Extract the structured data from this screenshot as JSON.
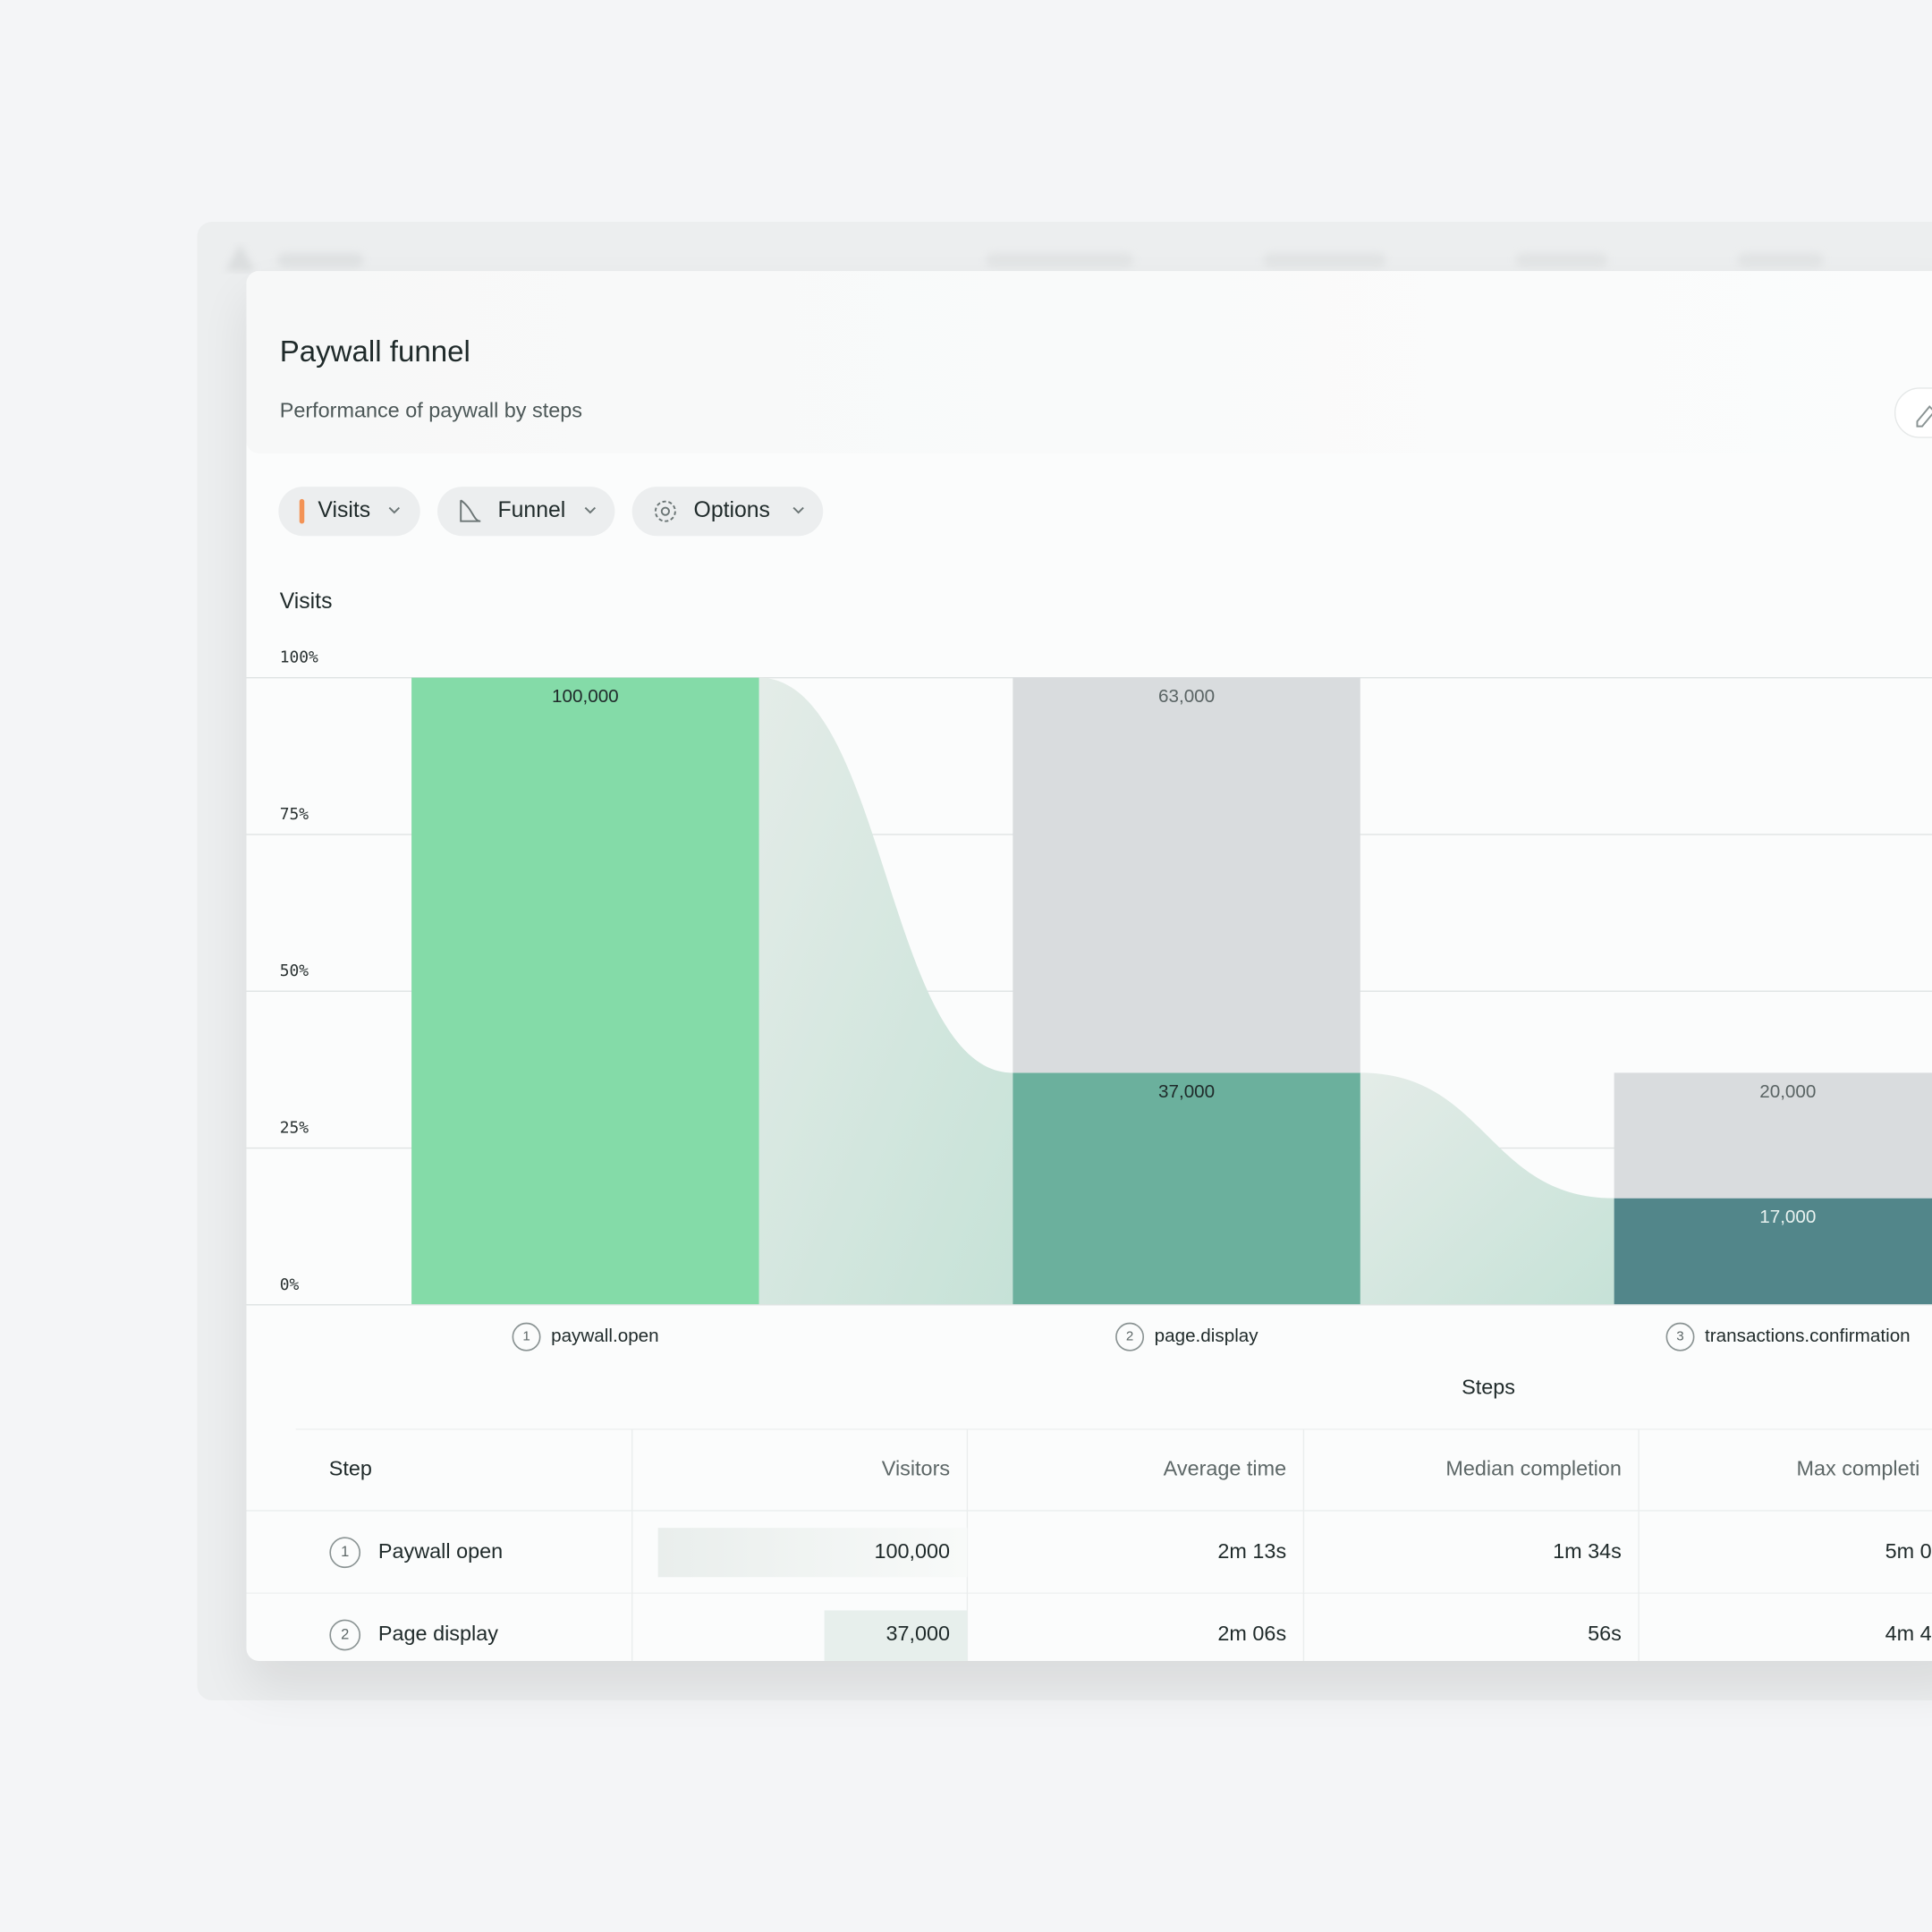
{
  "header": {
    "title": "Paywall funnel",
    "subtitle": "Performance of paywall by steps"
  },
  "toolbar": [
    "Visits",
    "Funnel",
    "Options"
  ],
  "chart_data": {
    "type": "funnel",
    "y_label": "Visits",
    "x_label": "Steps",
    "categories": [
      "paywall.open",
      "page.display",
      "transactions.confirmation"
    ],
    "step_numbers": [
      "1",
      "2",
      "3"
    ],
    "series": [
      {
        "colors": [
          "#84dba8",
          "#6bb09d",
          "#52868a"
        ],
        "values": [
          100000,
          37000,
          17000
        ],
        "value_labels": [
          "100,000",
          "37,000",
          "17,000"
        ]
      },
      {
        "color": "#d9dcde",
        "values": [
          null,
          63000,
          20000
        ],
        "value_labels": [
          null,
          "63,000",
          "20,000"
        ]
      }
    ],
    "ylim": [
      0,
      100000
    ],
    "yticks": [
      {
        "value": 0,
        "label": "0%"
      },
      {
        "value": 25000,
        "label": "25%"
      },
      {
        "value": 50000,
        "label": "50%"
      },
      {
        "value": 75000,
        "label": "75%"
      },
      {
        "value": 100000,
        "label": "100%"
      }
    ],
    "grid": true
  },
  "table": {
    "columns": [
      "Step",
      "Visitors",
      "Average time",
      "Median completion",
      "Max completi"
    ],
    "rows": [
      [
        "1",
        "Paywall open",
        "100,000",
        "2m 13s",
        "1m 34s",
        "5m 0"
      ],
      [
        "2",
        "Page display",
        "37,000",
        "2m 06s",
        "56s",
        "4m 4"
      ]
    ]
  }
}
